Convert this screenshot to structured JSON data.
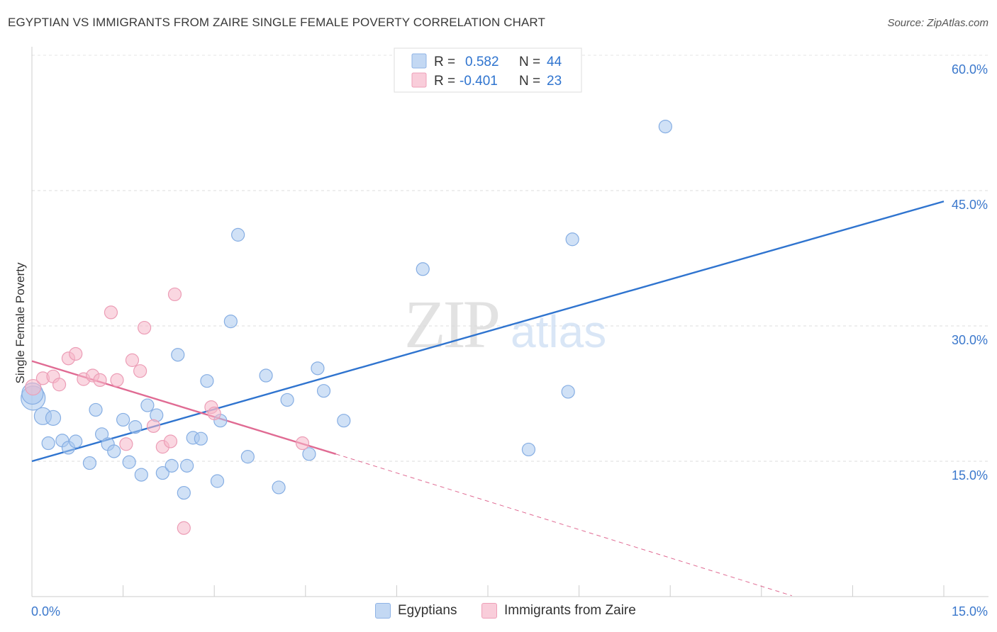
{
  "title": "EGYPTIAN VS IMMIGRANTS FROM ZAIRE SINGLE FEMALE POVERTY CORRELATION CHART",
  "source": "Source: ZipAtlas.com",
  "watermark": {
    "zip": "ZIP",
    "atlas": "atlas"
  },
  "legend_top": [
    {
      "r_label": "R =",
      "r_value": "0.582",
      "n_label": "N =",
      "n_value": "44"
    },
    {
      "r_label": "R =",
      "r_value": "-0.401",
      "n_label": "N =",
      "n_value": "23"
    }
  ],
  "legend_bottom": [
    "Egyptians",
    "Immigrants from Zaire"
  ],
  "chart_data": {
    "type": "scatter",
    "title": "EGYPTIAN VS IMMIGRANTS FROM ZAIRE SINGLE FEMALE POVERTY CORRELATION CHART",
    "xlabel": "",
    "ylabel": "Single Female Poverty",
    "xlim": [
      0,
      15
    ],
    "ylim": [
      0,
      62
    ],
    "x_tick_labels": [
      "0.0%",
      "15.0%"
    ],
    "y_tick_labels": [
      "15.0%",
      "30.0%",
      "45.0%",
      "60.0%"
    ],
    "y_ticks": [
      15,
      30,
      45,
      60
    ],
    "grid": true,
    "colors": {
      "blue": "#a9c8ef",
      "blue_line": "#2f74cf",
      "pink": "#f6b6c9",
      "pink_line": "#e06b93",
      "axis_label": "#3b78cc"
    },
    "series": [
      {
        "name": "Egyptians",
        "color": "#a9c8ef",
        "points": [
          [
            0.02,
            22.0
          ],
          [
            0.18,
            20.0
          ],
          [
            0.35,
            19.8
          ],
          [
            0.27,
            17.0
          ],
          [
            0.5,
            17.3
          ],
          [
            0.6,
            16.5
          ],
          [
            0.72,
            17.2
          ],
          [
            0.95,
            14.8
          ],
          [
            1.05,
            20.7
          ],
          [
            1.15,
            18.0
          ],
          [
            1.25,
            16.9
          ],
          [
            1.35,
            16.1
          ],
          [
            1.5,
            19.6
          ],
          [
            1.6,
            14.9
          ],
          [
            1.7,
            18.8
          ],
          [
            1.8,
            13.5
          ],
          [
            1.9,
            21.2
          ],
          [
            2.05,
            20.1
          ],
          [
            2.15,
            13.7
          ],
          [
            2.3,
            14.5
          ],
          [
            2.4,
            26.8
          ],
          [
            2.5,
            11.5
          ],
          [
            2.55,
            14.5
          ],
          [
            2.65,
            17.6
          ],
          [
            2.78,
            17.5
          ],
          [
            2.88,
            23.9
          ],
          [
            3.05,
            12.8
          ],
          [
            3.1,
            19.5
          ],
          [
            3.27,
            30.5
          ],
          [
            3.39,
            40.1
          ],
          [
            3.55,
            15.5
          ],
          [
            3.85,
            24.5
          ],
          [
            4.06,
            12.1
          ],
          [
            4.2,
            21.8
          ],
          [
            4.56,
            15.8
          ],
          [
            4.7,
            25.3
          ],
          [
            4.8,
            22.8
          ],
          [
            5.13,
            19.5
          ],
          [
            6.43,
            36.3
          ],
          [
            8.17,
            16.3
          ],
          [
            8.82,
            22.7
          ],
          [
            8.89,
            39.6
          ],
          [
            10.42,
            52.1
          ],
          [
            0.01,
            22.5
          ]
        ]
      },
      {
        "name": "Immigrants from Zaire",
        "color": "#f6b6c9",
        "points": [
          [
            0.02,
            23.2
          ],
          [
            0.18,
            24.2
          ],
          [
            0.35,
            24.4
          ],
          [
            0.45,
            23.5
          ],
          [
            0.6,
            26.4
          ],
          [
            0.72,
            26.9
          ],
          [
            0.85,
            24.1
          ],
          [
            1.0,
            24.5
          ],
          [
            1.12,
            24.0
          ],
          [
            1.3,
            31.5
          ],
          [
            1.4,
            24.0
          ],
          [
            1.55,
            16.9
          ],
          [
            1.65,
            26.2
          ],
          [
            1.78,
            25.0
          ],
          [
            1.85,
            29.8
          ],
          [
            2.0,
            18.9
          ],
          [
            2.15,
            16.6
          ],
          [
            2.28,
            17.2
          ],
          [
            2.35,
            33.5
          ],
          [
            2.5,
            7.6
          ],
          [
            2.95,
            21.0
          ],
          [
            3.0,
            20.3
          ],
          [
            4.45,
            17.0
          ]
        ]
      }
    ],
    "trendlines": [
      {
        "series": "Egyptians",
        "x": [
          0,
          15
        ],
        "y": [
          15.0,
          43.8
        ],
        "style": "solid"
      },
      {
        "series": "Immigrants from Zaire",
        "x": [
          0,
          5.0
        ],
        "y": [
          26.1,
          15.8
        ],
        "style": "solid"
      },
      {
        "series": "Immigrants from Zaire",
        "x": [
          5.0,
          12.5
        ],
        "y": [
          15.8,
          0.1
        ],
        "style": "dashed"
      }
    ]
  }
}
